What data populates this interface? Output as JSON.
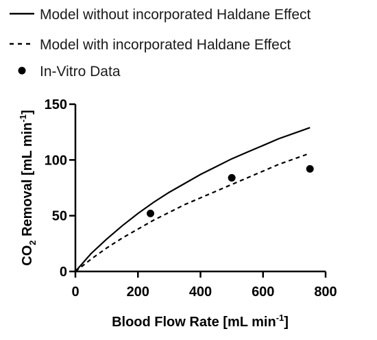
{
  "chart_data": {
    "type": "line",
    "xlabel": {
      "main": "Blood Flow Rate [mL min",
      "sup": "-1",
      "close": "]"
    },
    "ylabel": {
      "pre": "CO",
      "sub": "2",
      "main": " Removal [mL min",
      "sup": "-1",
      "close": "]"
    },
    "xlim": [
      0,
      800
    ],
    "ylim": [
      0,
      150
    ],
    "xticks": [
      0,
      200,
      400,
      600,
      800
    ],
    "yticks": [
      0,
      50,
      100,
      150
    ],
    "legend_position": "top-left, above plot",
    "series": [
      {
        "name": "Model without incorporated Haldane  Effect",
        "style": "solid",
        "x": [
          0,
          50,
          100,
          150,
          200,
          250,
          300,
          350,
          400,
          450,
          500,
          550,
          600,
          650,
          700,
          750
        ],
        "y": [
          0,
          16,
          29,
          41,
          52,
          62,
          71,
          79,
          87,
          94,
          101,
          107,
          113,
          119,
          124,
          129
        ]
      },
      {
        "name": "Model with incorporated Haldane Effect",
        "style": "dashed",
        "x": [
          0,
          50,
          100,
          150,
          200,
          250,
          300,
          350,
          400,
          450,
          500,
          550,
          600,
          650,
          700,
          750
        ],
        "y": [
          0,
          11,
          21,
          30,
          38,
          46,
          53,
          60,
          66,
          72,
          78,
          84,
          90,
          96,
          101,
          106
        ]
      },
      {
        "name": "In-Vitro Data",
        "style": "markers",
        "x": [
          240,
          500,
          750
        ],
        "y": [
          52,
          84,
          92
        ]
      }
    ]
  }
}
